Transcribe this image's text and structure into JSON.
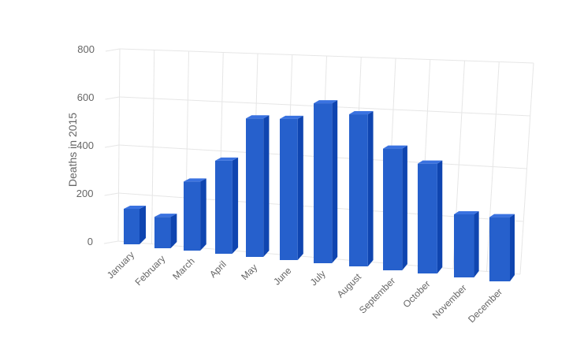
{
  "chart_data": {
    "type": "bar",
    "title": "",
    "xlabel": "",
    "ylabel": "Deaths in 2015",
    "ylim": [
      0,
      800
    ],
    "yticks": [
      "0",
      "200",
      "400",
      "600",
      "800"
    ],
    "grid": true,
    "three_d": true,
    "categories": [
      "January",
      "February",
      "March",
      "April",
      "May",
      "June",
      "July",
      "August",
      "September",
      "October",
      "November",
      "December"
    ],
    "values": [
      150,
      130,
      280,
      370,
      540,
      540,
      600,
      560,
      440,
      390,
      220,
      220
    ],
    "colors": {
      "front": "#2660cc",
      "side": "#0f45b0",
      "top": "#3a72e0",
      "grid": "#e6e6e6",
      "text": "#666666"
    }
  }
}
